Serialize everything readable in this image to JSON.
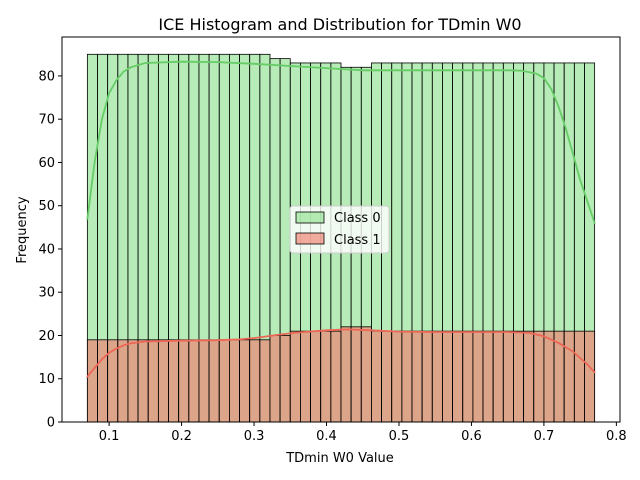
{
  "chart_data": {
    "type": "bar",
    "title": "ICE Histogram and Distribution for TDmin W0",
    "xlabel": "TDmin W0 Value",
    "ylabel": "Frequency",
    "xlim": [
      0.035,
      0.805
    ],
    "ylim": [
      0,
      89
    ],
    "xticks": [
      0.1,
      0.2,
      0.3,
      0.4,
      0.5,
      0.6,
      0.7,
      0.8
    ],
    "xtick_labels": [
      "0.1",
      "0.2",
      "0.3",
      "0.4",
      "0.5",
      "0.6",
      "0.7",
      "0.8"
    ],
    "yticks": [
      0,
      10,
      20,
      30,
      40,
      50,
      60,
      70,
      80
    ],
    "ytick_labels": [
      "0",
      "10",
      "20",
      "30",
      "40",
      "50",
      "60",
      "70",
      "80"
    ],
    "bin_start": 0.07,
    "bin_end": 0.77,
    "legend_position": "center",
    "grid": false,
    "series": [
      {
        "name": "Class 0",
        "color": "#90e090",
        "line_color": "#66cc66",
        "counts": [
          85,
          85,
          85,
          85,
          85,
          85,
          85,
          85,
          85,
          85,
          85,
          85,
          85,
          85,
          85,
          85,
          85,
          85,
          84,
          84,
          83,
          83,
          83,
          83,
          83,
          82,
          82,
          82,
          83,
          83,
          83,
          83,
          83,
          83,
          83,
          83,
          83,
          83,
          83,
          83,
          83,
          83,
          83,
          83,
          83,
          83,
          83,
          83,
          83,
          83
        ],
        "kde": [
          [
            0.07,
            47
          ],
          [
            0.08,
            60
          ],
          [
            0.09,
            70
          ],
          [
            0.1,
            76
          ],
          [
            0.11,
            79
          ],
          [
            0.12,
            81
          ],
          [
            0.13,
            82
          ],
          [
            0.15,
            83
          ],
          [
            0.2,
            83.3
          ],
          [
            0.25,
            83.2
          ],
          [
            0.3,
            82.8
          ],
          [
            0.35,
            82.3
          ],
          [
            0.4,
            81.8
          ],
          [
            0.45,
            81.3
          ],
          [
            0.5,
            81.3
          ],
          [
            0.55,
            81.3
          ],
          [
            0.6,
            81.3
          ],
          [
            0.65,
            81.3
          ],
          [
            0.67,
            81.2
          ],
          [
            0.69,
            80.5
          ],
          [
            0.7,
            79.5
          ],
          [
            0.71,
            77
          ],
          [
            0.72,
            73
          ],
          [
            0.73,
            68
          ],
          [
            0.74,
            62
          ],
          [
            0.75,
            56
          ],
          [
            0.76,
            51
          ],
          [
            0.77,
            46
          ]
        ]
      },
      {
        "name": "Class 1",
        "color": "#f08070",
        "line_color": "#ee6655",
        "counts": [
          19,
          19,
          19,
          19,
          19,
          19,
          19,
          19,
          19,
          19,
          19,
          19,
          19,
          19,
          19,
          19,
          19,
          19,
          20,
          20,
          21,
          21,
          21,
          21,
          21,
          22,
          22,
          22,
          21,
          21,
          21,
          21,
          21,
          21,
          21,
          21,
          21,
          21,
          21,
          21,
          21,
          21,
          21,
          21,
          21,
          21,
          21,
          21,
          21,
          21
        ],
        "kde": [
          [
            0.07,
            10.5
          ],
          [
            0.08,
            12.5
          ],
          [
            0.09,
            14.5
          ],
          [
            0.1,
            16
          ],
          [
            0.11,
            17
          ],
          [
            0.12,
            17.7
          ],
          [
            0.13,
            18.2
          ],
          [
            0.15,
            18.6
          ],
          [
            0.2,
            18.8
          ],
          [
            0.25,
            18.9
          ],
          [
            0.28,
            19.1
          ],
          [
            0.3,
            19.4
          ],
          [
            0.33,
            20.1
          ],
          [
            0.36,
            20.7
          ],
          [
            0.4,
            21.2
          ],
          [
            0.43,
            21.4
          ],
          [
            0.46,
            21.2
          ],
          [
            0.5,
            20.9
          ],
          [
            0.55,
            20.8
          ],
          [
            0.6,
            20.8
          ],
          [
            0.65,
            20.8
          ],
          [
            0.68,
            20.6
          ],
          [
            0.7,
            19.8
          ],
          [
            0.72,
            18.3
          ],
          [
            0.74,
            16.3
          ],
          [
            0.76,
            13.3
          ],
          [
            0.77,
            11.5
          ]
        ]
      }
    ]
  }
}
